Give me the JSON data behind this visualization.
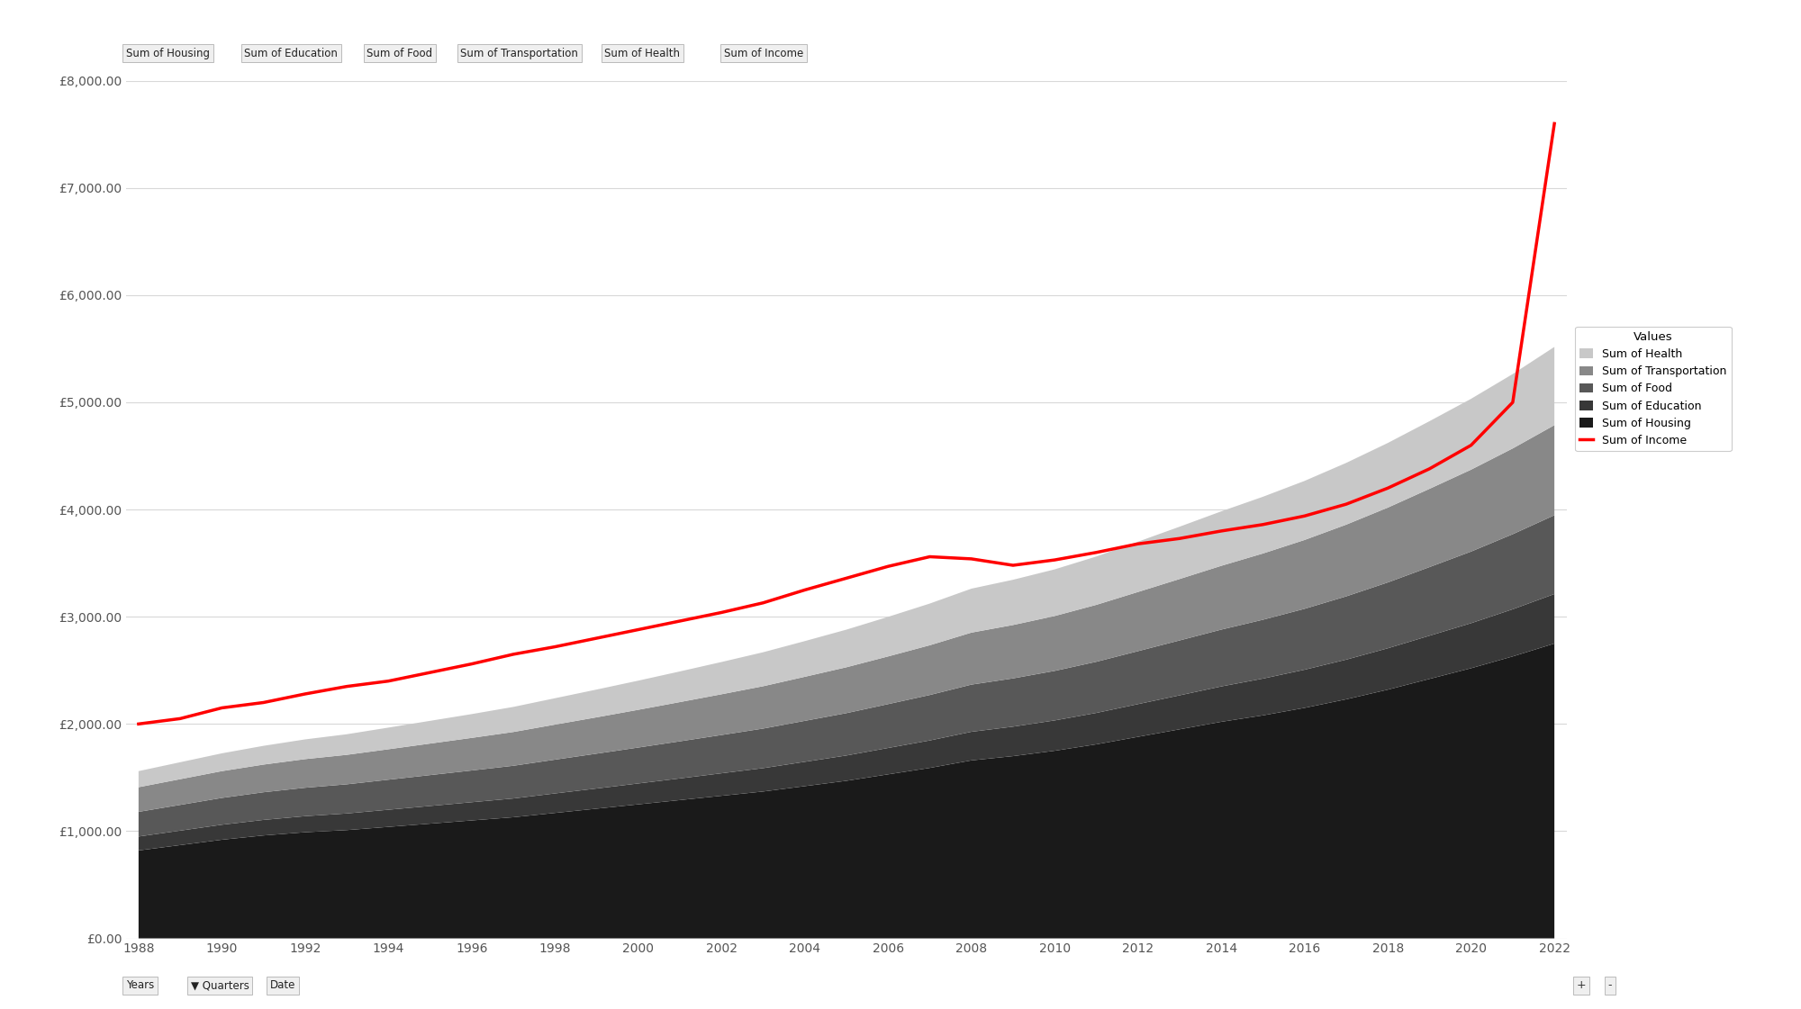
{
  "years": [
    1988,
    1989,
    1990,
    1991,
    1992,
    1993,
    1994,
    1995,
    1996,
    1997,
    1998,
    1999,
    2000,
    2001,
    2002,
    2003,
    2004,
    2005,
    2006,
    2007,
    2008,
    2009,
    2010,
    2011,
    2012,
    2013,
    2014,
    2015,
    2016,
    2017,
    2018,
    2019,
    2020,
    2021,
    2022
  ],
  "housing": [
    820,
    870,
    920,
    960,
    990,
    1010,
    1040,
    1070,
    1100,
    1130,
    1170,
    1210,
    1250,
    1290,
    1330,
    1370,
    1420,
    1470,
    1530,
    1590,
    1660,
    1700,
    1750,
    1810,
    1880,
    1950,
    2020,
    2080,
    2150,
    2230,
    2320,
    2420,
    2520,
    2630,
    2750
  ],
  "education": [
    130,
    135,
    140,
    145,
    150,
    155,
    160,
    165,
    170,
    175,
    182,
    188,
    195,
    202,
    210,
    218,
    227,
    236,
    246,
    256,
    267,
    275,
    283,
    293,
    305,
    317,
    330,
    343,
    356,
    370,
    386,
    403,
    420,
    440,
    462
  ],
  "food": [
    230,
    240,
    250,
    258,
    265,
    272,
    280,
    288,
    296,
    305,
    315,
    325,
    335,
    346,
    357,
    369,
    382,
    395,
    409,
    424,
    440,
    450,
    462,
    477,
    494,
    512,
    530,
    549,
    568,
    590,
    614,
    640,
    668,
    700,
    735
  ],
  "transportation": [
    230,
    240,
    250,
    258,
    267,
    275,
    284,
    294,
    304,
    315,
    327,
    339,
    352,
    366,
    380,
    395,
    411,
    428,
    445,
    464,
    485,
    498,
    512,
    531,
    552,
    573,
    595,
    618,
    642,
    669,
    698,
    730,
    764,
    800,
    840
  ],
  "health": [
    150,
    158,
    166,
    175,
    184,
    192,
    202,
    212,
    222,
    234,
    246,
    259,
    272,
    286,
    301,
    317,
    333,
    351,
    369,
    389,
    410,
    422,
    435,
    451,
    469,
    488,
    508,
    529,
    551,
    576,
    603,
    631,
    661,
    694,
    730
  ],
  "income": [
    2000,
    2050,
    2150,
    2200,
    2280,
    2350,
    2400,
    2480,
    2560,
    2650,
    2720,
    2800,
    2880,
    2960,
    3040,
    3130,
    3250,
    3360,
    3470,
    3560,
    3540,
    3480,
    3530,
    3600,
    3680,
    3730,
    3800,
    3860,
    3940,
    4050,
    4200,
    4380,
    4600,
    5000,
    7600
  ],
  "colors": {
    "housing": "#1a1a1a",
    "education": "#383838",
    "food": "#585858",
    "transportation": "#888888",
    "health": "#c8c8c8",
    "income": "#ff0000"
  },
  "ylim": [
    0,
    8000
  ],
  "yticks": [
    0,
    1000,
    2000,
    3000,
    4000,
    5000,
    6000,
    7000,
    8000
  ],
  "ytick_labels": [
    "£0.00",
    "£1,000.00",
    "£2,000.00",
    "£3,000.00",
    "£4,000.00",
    "£5,000.00",
    "£6,000.00",
    "£7,000.00",
    "£8,000.00"
  ],
  "legend_title": "Values",
  "legend_entries": [
    "Sum of Health",
    "Sum of Transportation",
    "Sum of Food",
    "Sum of Education",
    "Sum of Housing",
    "Sum of Income"
  ],
  "top_labels": [
    "Sum of Housing",
    "Sum of Education",
    "Sum of Food",
    "Sum of Transportation",
    "Sum of Health",
    "Sum of Income"
  ],
  "background_color": "#ffffff",
  "gridline_color": "#d8d8d8"
}
